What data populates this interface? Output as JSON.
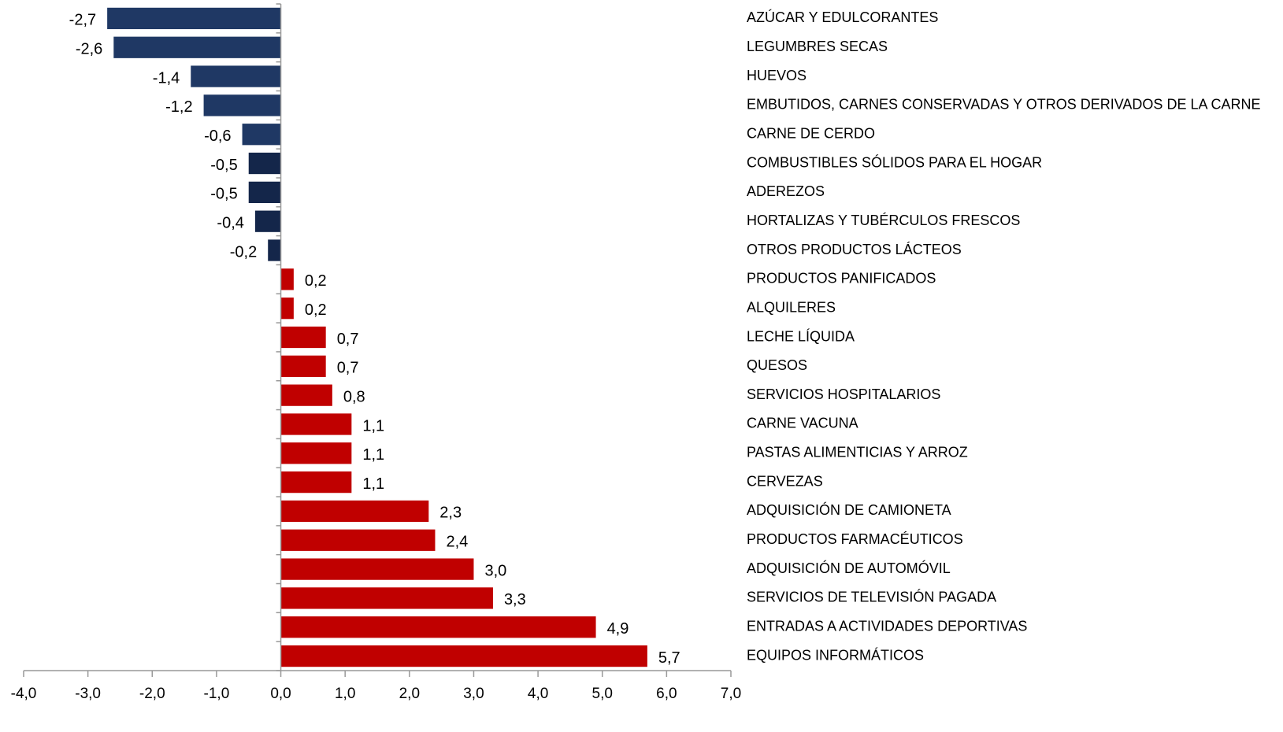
{
  "chart_data": {
    "type": "bar",
    "orientation": "horizontal",
    "categories": [
      "AZÚCAR Y EDULCORANTES",
      "LEGUMBRES SECAS",
      "HUEVOS",
      "EMBUTIDOS, CARNES CONSERVADAS Y OTROS DERIVADOS DE LA CARNE",
      "CARNE DE CERDO",
      "COMBUSTIBLES SÓLIDOS PARA EL HOGAR",
      "ADEREZOS",
      "HORTALIZAS Y TUBÉRCULOS FRESCOS",
      "OTROS PRODUCTOS LÁCTEOS",
      "PRODUCTOS PANIFICADOS",
      "ALQUILERES",
      "LECHE LÍQUIDA",
      "QUESOS",
      "SERVICIOS HOSPITALARIOS",
      "CARNE VACUNA",
      "PASTAS ALIMENTICIAS Y ARROZ",
      "CERVEZAS",
      "ADQUISICIÓN DE CAMIONETA",
      "PRODUCTOS FARMACÉUTICOS",
      "ADQUISICIÓN DE AUTOMÓVIL",
      "SERVICIOS DE TELEVISIÓN PAGADA",
      "ENTRADAS A ACTIVIDADES DEPORTIVAS",
      "EQUIPOS INFORMÁTICOS"
    ],
    "values": [
      -2.7,
      -2.6,
      -1.4,
      -1.2,
      -0.6,
      -0.5,
      -0.5,
      -0.4,
      -0.2,
      0.2,
      0.2,
      0.7,
      0.7,
      0.8,
      1.1,
      1.1,
      1.1,
      2.3,
      2.4,
      3.0,
      3.3,
      4.9,
      5.7
    ],
    "value_labels": [
      "-2,7",
      "-2,6",
      "-1,4",
      "-1,2",
      "-0,6",
      "-0,5",
      "-0,5",
      "-0,4",
      "-0,2",
      "0,2",
      "0,2",
      "0,7",
      "0,7",
      "0,8",
      "1,1",
      "1,1",
      "1,1",
      "2,3",
      "2,4",
      "3,0",
      "3,3",
      "4,9",
      "5,7"
    ],
    "colors": [
      "#1f3864",
      "#1f3864",
      "#1f3864",
      "#1f3864",
      "#1f3864",
      "#14264a",
      "#14264a",
      "#14264a",
      "#14264a",
      "#c00000",
      "#c00000",
      "#c00000",
      "#c00000",
      "#c00000",
      "#c00000",
      "#c00000",
      "#c00000",
      "#c00000",
      "#c00000",
      "#c00000",
      "#c00000",
      "#c00000",
      "#c00000"
    ],
    "xlim": [
      -4,
      7
    ],
    "xticks": [
      {
        "value": -4,
        "label": "-4,0"
      },
      {
        "value": -3,
        "label": "-3,0"
      },
      {
        "value": -2,
        "label": "-2,0"
      },
      {
        "value": -1,
        "label": "-1,0"
      },
      {
        "value": 0,
        "label": "0,0"
      },
      {
        "value": 1,
        "label": "1,0"
      },
      {
        "value": 2,
        "label": "2,0"
      },
      {
        "value": 3,
        "label": "3,0"
      },
      {
        "value": 4,
        "label": "4,0"
      },
      {
        "value": 5,
        "label": "5,0"
      },
      {
        "value": 6,
        "label": "6,0"
      },
      {
        "value": 7,
        "label": "7,0"
      }
    ]
  }
}
